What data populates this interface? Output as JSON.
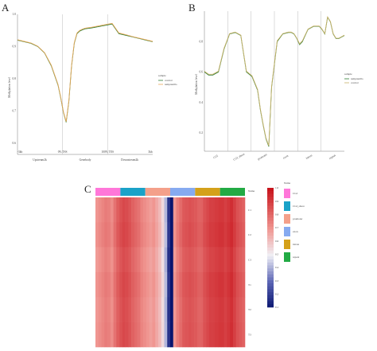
{
  "panel_labels": [
    "A",
    "B",
    "C"
  ],
  "chart_data": [
    {
      "type": "line",
      "panel": "A",
      "title": "",
      "xlabel": "",
      "ylabel": "Methylation level",
      "x_tick_labels": [
        "-3kb",
        "0% TSS",
        "100% TES",
        "3kb"
      ],
      "x_region_labels": [
        "Upstream2k",
        "Genebody",
        "Downstream2k"
      ],
      "y_tick_labels": [
        "0.6",
        "0.7",
        "0.8",
        "0.9",
        "1.0"
      ],
      "ylim": [
        0.58,
        1.0
      ],
      "legend_title": "sample",
      "x": [
        0,
        5,
        10,
        15,
        20,
        25,
        30,
        32,
        34,
        36,
        38,
        40,
        42,
        44,
        46,
        48,
        50,
        55,
        60,
        65,
        70,
        75,
        80,
        85,
        90,
        95,
        100
      ],
      "series": [
        {
          "name": "control",
          "color": "#2e7d32",
          "values": [
            0.92,
            0.915,
            0.91,
            0.9,
            0.88,
            0.84,
            0.78,
            0.74,
            0.695,
            0.665,
            0.73,
            0.84,
            0.91,
            0.94,
            0.948,
            0.952,
            0.955,
            0.958,
            0.962,
            0.966,
            0.97,
            0.94,
            0.935,
            0.93,
            0.925,
            0.92,
            0.915
          ]
        },
        {
          "name": "tempranillo",
          "color": "#e8a85a",
          "values": [
            0.921,
            0.916,
            0.911,
            0.901,
            0.881,
            0.842,
            0.782,
            0.742,
            0.697,
            0.667,
            0.732,
            0.842,
            0.912,
            0.942,
            0.95,
            0.954,
            0.957,
            0.96,
            0.964,
            0.968,
            0.972,
            0.942,
            0.937,
            0.931,
            0.926,
            0.921,
            0.916
          ]
        }
      ]
    },
    {
      "type": "line",
      "panel": "B",
      "title": "",
      "xlabel": "",
      "ylabel": "Methylation level",
      "categories": [
        "CGI",
        "CGI_shore",
        "promoter",
        "exon",
        "intron",
        "repeat"
      ],
      "y_tick_labels": [
        "0.2",
        "0.4",
        "0.6",
        "0.8"
      ],
      "ylim": [
        0.1,
        1.0
      ],
      "legend_title": "sample",
      "x": [
        0,
        3,
        6,
        10,
        14,
        18,
        22,
        26,
        30,
        34,
        38,
        40,
        42,
        44,
        46,
        48,
        52,
        56,
        60,
        62,
        64,
        66,
        68,
        70,
        74,
        78,
        82,
        84,
        86,
        88,
        90,
        92,
        94,
        96,
        98,
        100
      ],
      "series": [
        {
          "name": "tempranillo",
          "color": "#2e7d32",
          "values": [
            0.6,
            0.58,
            0.58,
            0.6,
            0.75,
            0.85,
            0.86,
            0.84,
            0.6,
            0.57,
            0.48,
            0.35,
            0.25,
            0.16,
            0.11,
            0.5,
            0.8,
            0.85,
            0.86,
            0.86,
            0.85,
            0.82,
            0.78,
            0.8,
            0.88,
            0.9,
            0.9,
            0.88,
            0.85,
            0.96,
            0.93,
            0.85,
            0.82,
            0.82,
            0.83,
            0.84
          ]
        },
        {
          "name": "control",
          "color": "#c9b26a",
          "values": [
            0.605,
            0.585,
            0.585,
            0.605,
            0.755,
            0.852,
            0.862,
            0.842,
            0.605,
            0.575,
            0.485,
            0.355,
            0.255,
            0.165,
            0.115,
            0.505,
            0.805,
            0.852,
            0.862,
            0.862,
            0.852,
            0.822,
            0.785,
            0.805,
            0.882,
            0.902,
            0.902,
            0.882,
            0.852,
            0.962,
            0.932,
            0.852,
            0.822,
            0.822,
            0.832,
            0.842
          ]
        }
      ]
    },
    {
      "type": "heatmap",
      "panel": "C",
      "title": "",
      "column_groups": [
        {
          "name": "CGI",
          "color": "#ff77d9"
        },
        {
          "name": "CGI_shore",
          "color": "#1aa2c8"
        },
        {
          "name": "promoter",
          "color": "#f4a08a"
        },
        {
          "name": "exon",
          "color": "#86aaf0"
        },
        {
          "name": "intron",
          "color": "#d4a11a"
        },
        {
          "name": "repeat",
          "color": "#22aa44"
        }
      ],
      "annotation_label": "Name",
      "row_labels": [
        "C1",
        "C2",
        "C3",
        "T1",
        "T2",
        "T3"
      ],
      "color_scale_ticks": [
        "1.0",
        "0.9",
        "0.8",
        "0.7",
        "0.6",
        "0.5",
        "0.4",
        "0.3",
        "0.2",
        "0.1"
      ],
      "color_scale_range": [
        0.1,
        1.0
      ],
      "column_values": [
        0.7,
        0.72,
        0.74,
        0.76,
        0.75,
        0.72,
        0.78,
        0.83,
        0.86,
        0.88,
        0.87,
        0.85,
        0.82,
        0.8,
        0.78,
        0.74,
        0.72,
        0.7,
        0.68,
        0.7,
        0.66,
        0.62,
        0.55,
        0.42,
        0.18,
        0.06,
        0.7,
        0.76,
        0.8,
        0.84,
        0.85,
        0.86,
        0.85,
        0.84,
        0.82,
        0.82,
        0.86,
        0.88,
        0.9,
        0.9,
        0.91,
        0.92,
        0.92,
        0.9,
        0.92,
        0.94,
        0.9,
        0.86,
        0.84,
        0.82
      ],
      "row_offsets": [
        0.0,
        0.01,
        -0.01,
        0.005,
        -0.005,
        0.0
      ]
    }
  ]
}
